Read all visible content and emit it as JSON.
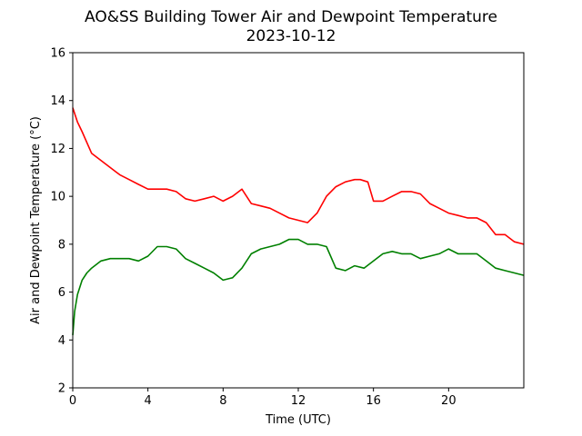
{
  "chart_data": {
    "type": "line",
    "title": "AO&SS Building Tower Air and Dewpoint Temperature",
    "subtitle": "2023-10-12",
    "xlabel": "Time (UTC)",
    "ylabel": "Air and Dewpoint Temperature (°C)",
    "xlim": [
      0,
      24
    ],
    "ylim": [
      2,
      16
    ],
    "xticks": [
      0,
      4,
      8,
      12,
      16,
      20
    ],
    "yticks": [
      2,
      4,
      6,
      8,
      10,
      12,
      14,
      16
    ],
    "grid": false,
    "legend": "none",
    "series": [
      {
        "color": "#ff0000",
        "x": [
          0,
          0.25,
          0.5,
          1,
          1.5,
          2,
          2.5,
          3,
          3.5,
          4,
          4.5,
          5,
          5.5,
          6,
          6.5,
          7,
          7.5,
          8,
          8.5,
          9,
          9.5,
          10,
          10.5,
          11,
          11.5,
          12,
          12.5,
          13,
          13.5,
          14,
          14.5,
          15,
          15.3,
          15.7,
          16,
          16.5,
          17,
          17.5,
          18,
          18.5,
          19,
          19.5,
          20,
          20.5,
          21,
          21.5,
          22,
          22.5,
          23,
          23.5,
          24
        ],
        "y": [
          13.7,
          13.1,
          12.7,
          11.8,
          11.5,
          11.2,
          10.9,
          10.7,
          10.5,
          10.3,
          10.3,
          10.3,
          10.2,
          9.9,
          9.8,
          9.9,
          10.0,
          9.8,
          10.0,
          10.3,
          9.7,
          9.6,
          9.5,
          9.3,
          9.1,
          9.0,
          8.9,
          9.3,
          10.0,
          10.4,
          10.6,
          10.7,
          10.7,
          10.6,
          9.8,
          9.8,
          10.0,
          10.2,
          10.2,
          10.1,
          9.7,
          9.5,
          9.3,
          9.2,
          9.1,
          9.1,
          8.9,
          8.4,
          8.4,
          8.1,
          8.0
        ]
      },
      {
        "color": "#008000",
        "x": [
          0,
          0.1,
          0.25,
          0.5,
          0.75,
          1,
          1.5,
          2,
          2.5,
          3,
          3.5,
          4,
          4.5,
          5,
          5.5,
          6,
          6.5,
          7,
          7.5,
          8,
          8.5,
          9,
          9.5,
          10,
          10.5,
          11,
          11.5,
          12,
          12.5,
          13,
          13.5,
          14,
          14.5,
          15,
          15.5,
          16,
          16.5,
          17,
          17.5,
          18,
          18.5,
          19,
          19.5,
          20,
          20.5,
          21,
          21.5,
          22,
          22.5,
          23,
          23.5,
          24
        ],
        "y": [
          4.2,
          5.2,
          5.9,
          6.5,
          6.8,
          7.0,
          7.3,
          7.4,
          7.4,
          7.4,
          7.3,
          7.5,
          7.9,
          7.9,
          7.8,
          7.4,
          7.2,
          7.0,
          6.8,
          6.5,
          6.6,
          7.0,
          7.6,
          7.8,
          7.9,
          8.0,
          8.2,
          8.2,
          8.0,
          8.0,
          7.9,
          7.0,
          6.9,
          7.1,
          7.0,
          7.3,
          7.6,
          7.7,
          7.6,
          7.6,
          7.4,
          7.5,
          7.6,
          7.8,
          7.6,
          7.6,
          7.6,
          7.3,
          7.0,
          6.9,
          6.8,
          6.7
        ]
      }
    ]
  }
}
